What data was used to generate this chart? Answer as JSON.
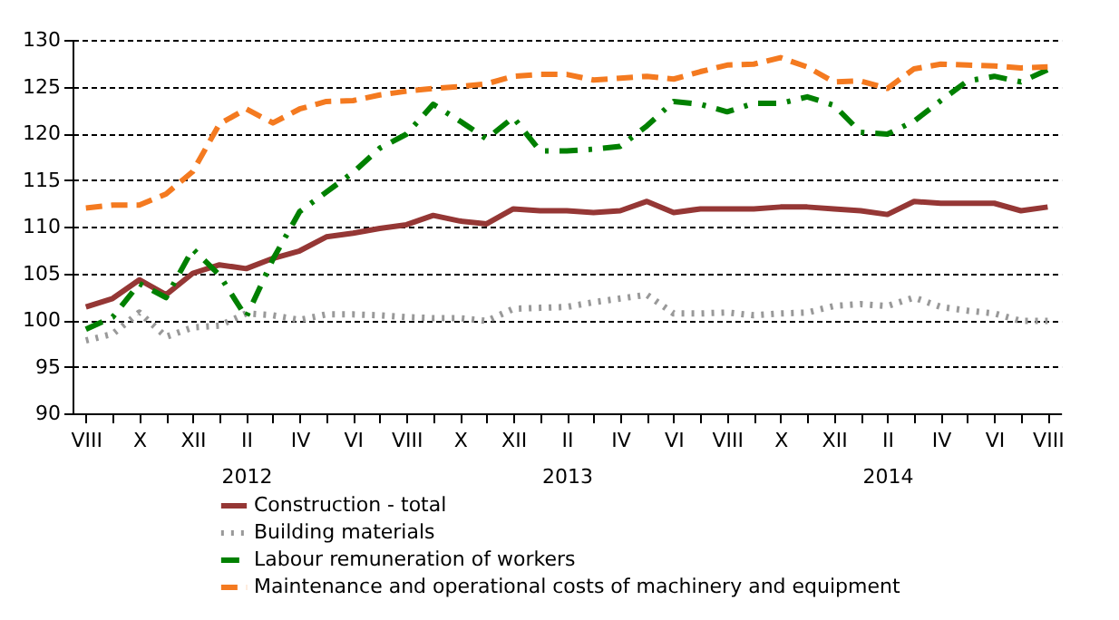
{
  "chart_data": {
    "type": "line",
    "categories": [
      "VIII",
      null,
      "X",
      null,
      "XII",
      null,
      "II\n2012",
      null,
      "IV",
      null,
      "VI",
      null,
      "VIII",
      null,
      "X",
      null,
      "XII",
      null,
      "II\n2013",
      null,
      "IV",
      null,
      "VI",
      null,
      "VIII",
      null,
      "X",
      null,
      "XII",
      null,
      "II\n2014",
      null,
      "IV",
      null,
      "VI",
      null,
      "VIII"
    ],
    "series": [
      {
        "name": "Construction - total",
        "color": "#953735",
        "line_style": "solid",
        "values": [
          101.4,
          102.3,
          104.3,
          102.7,
          105.0,
          105.9,
          105.5,
          106.6,
          107.4,
          108.9,
          109.3,
          109.8,
          110.2,
          111.2,
          110.6,
          110.3,
          111.9,
          111.7,
          111.7,
          111.5,
          111.7,
          112.7,
          111.5,
          111.9,
          111.9,
          111.9,
          112.1,
          112.1,
          111.9,
          111.7,
          111.3,
          112.7,
          112.5,
          112.5,
          112.5,
          111.7,
          112.1
        ]
      },
      {
        "name": "Building materials",
        "color": "#999999",
        "line_style": "dotted",
        "values": [
          97.8,
          98.5,
          100.8,
          98.2,
          99.2,
          99.4,
          100.7,
          100.5,
          100.0,
          100.6,
          100.6,
          100.5,
          100.3,
          100.2,
          100.2,
          99.9,
          101.2,
          101.3,
          101.4,
          101.9,
          102.3,
          102.7,
          100.7,
          100.7,
          100.8,
          100.5,
          100.7,
          100.8,
          101.5,
          101.7,
          101.5,
          102.4,
          101.4,
          101.0,
          100.7,
          99.9,
          99.9
        ]
      },
      {
        "name": "Labour remuneration of workers",
        "color": "#008000",
        "line_style": "dashdot",
        "values": [
          99.0,
          100.3,
          103.9,
          102.4,
          107.6,
          104.8,
          100.3,
          106.5,
          111.6,
          113.7,
          115.8,
          118.4,
          119.9,
          123.1,
          121.3,
          119.4,
          121.7,
          118.1,
          118.1,
          118.3,
          118.6,
          120.8,
          123.4,
          123.1,
          122.3,
          123.2,
          123.2,
          123.9,
          123.0,
          120.1,
          119.9,
          121.3,
          123.5,
          125.6,
          126.1,
          125.5,
          126.8
        ]
      },
      {
        "name": "Maintenance and operational costs of machinery and equipment",
        "color": "#f47a20",
        "line_style": "dashed",
        "values": [
          112.0,
          112.3,
          112.3,
          113.5,
          115.9,
          121.0,
          122.6,
          121.1,
          122.6,
          123.4,
          123.5,
          124.1,
          124.5,
          124.8,
          125.0,
          125.3,
          126.1,
          126.3,
          126.3,
          125.7,
          125.9,
          126.1,
          125.8,
          126.6,
          127.3,
          127.4,
          128.1,
          127.1,
          125.5,
          125.6,
          124.8,
          126.9,
          127.4,
          127.3,
          127.2,
          127.0,
          127.1
        ]
      }
    ],
    "ylim": [
      90,
      130
    ],
    "yticks": [
      90,
      95,
      100,
      105,
      110,
      115,
      120,
      125,
      130
    ],
    "grid": "y",
    "legend": "bottom",
    "marker": "none"
  }
}
